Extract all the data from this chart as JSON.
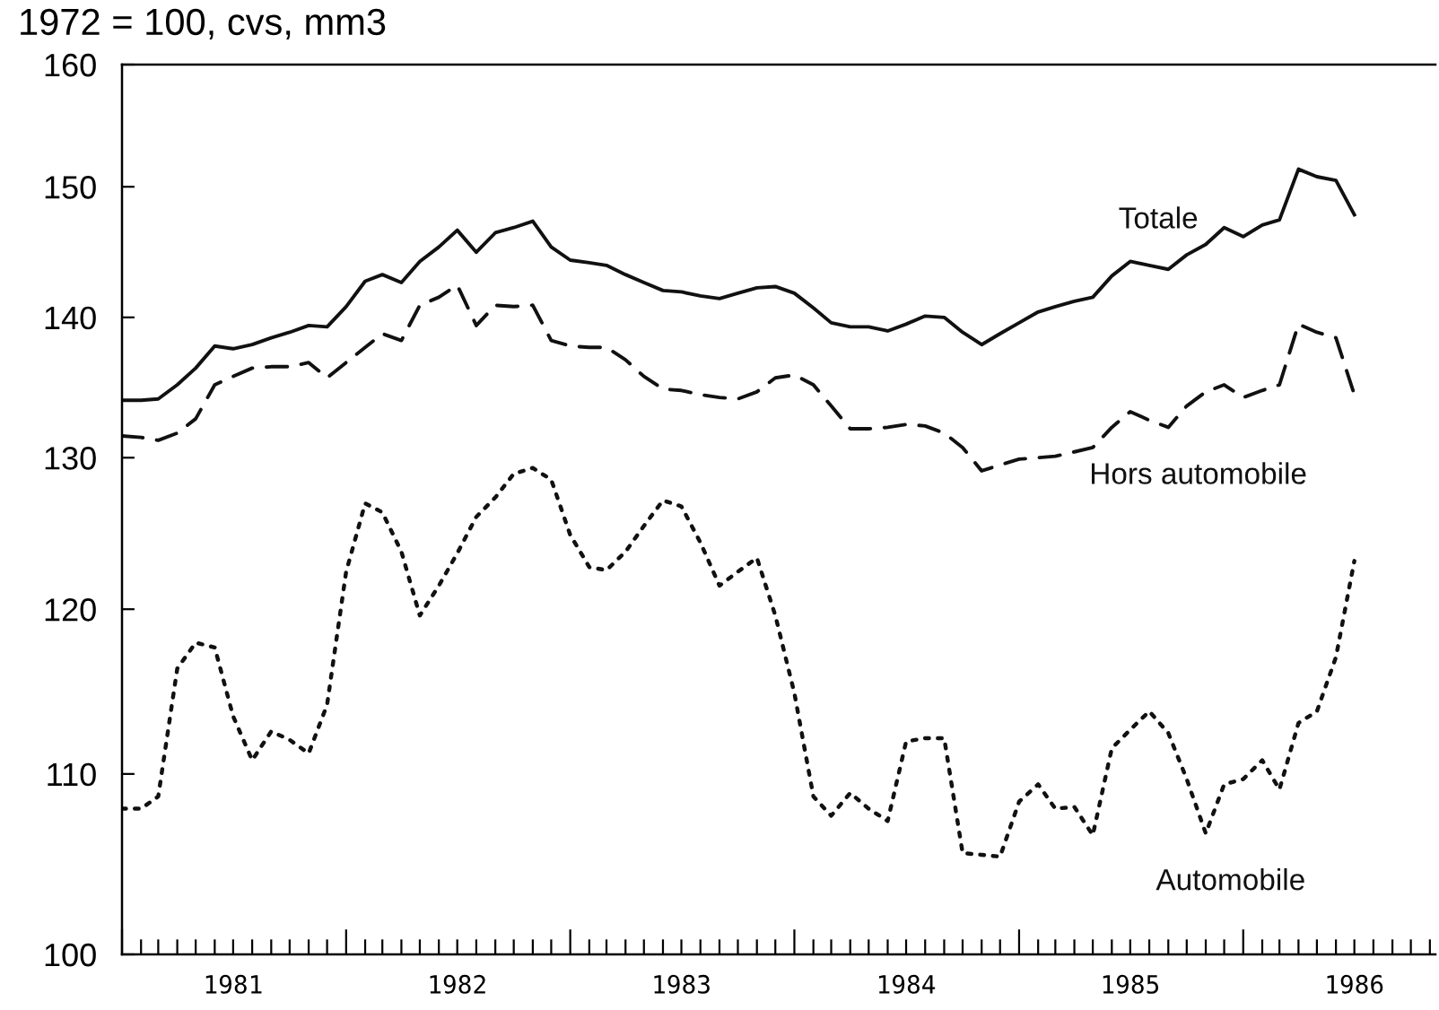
{
  "chart_data": {
    "type": "line",
    "title": "1972 = 100, cvs, mm3",
    "log": "y",
    "grid": false,
    "legend": false,
    "marker": "none",
    "x": [
      "1981-01",
      "1981-02",
      "1981-03",
      "1981-04",
      "1981-05",
      "1981-06",
      "1981-07",
      "1981-08",
      "1981-09",
      "1981-10",
      "1981-11",
      "1981-12",
      "1982-01",
      "1982-02",
      "1982-03",
      "1982-04",
      "1982-05",
      "1982-06",
      "1982-07",
      "1982-08",
      "1982-09",
      "1982-10",
      "1982-11",
      "1982-12",
      "1983-01",
      "1983-02",
      "1983-03",
      "1983-04",
      "1983-05",
      "1983-06",
      "1983-07",
      "1983-08",
      "1983-09",
      "1983-10",
      "1983-11",
      "1983-12",
      "1984-01",
      "1984-02",
      "1984-03",
      "1984-04",
      "1984-05",
      "1984-06",
      "1984-07",
      "1984-08",
      "1984-09",
      "1984-10",
      "1984-11",
      "1984-12",
      "1985-01",
      "1985-02",
      "1985-03",
      "1985-04",
      "1985-05",
      "1985-06",
      "1985-07",
      "1985-08",
      "1985-09",
      "1985-10",
      "1985-11",
      "1985-12",
      "1986-01",
      "1986-02",
      "1986-03",
      "1986-04",
      "1986-05",
      "1986-06",
      "1986-07"
    ],
    "series": [
      {
        "name": "Totale",
        "color": "#111111",
        "line_style": "solid",
        "values": [
          134.0,
          134.0,
          134.1,
          135.1,
          136.3,
          137.9,
          137.7,
          138.0,
          138.5,
          138.9,
          139.4,
          139.3,
          140.8,
          142.7,
          143.2,
          142.6,
          144.2,
          145.3,
          146.6,
          144.9,
          146.4,
          146.8,
          147.3,
          145.3,
          144.3,
          144.1,
          143.9,
          143.2,
          142.6,
          142.0,
          141.9,
          141.6,
          141.4,
          141.8,
          142.2,
          142.3,
          141.8,
          140.7,
          139.6,
          139.3,
          139.3,
          139.0,
          139.5,
          140.1,
          140.0,
          138.9,
          138.0,
          138.8,
          139.6,
          140.4,
          140.8,
          141.2,
          141.5,
          143.1,
          144.2,
          143.9,
          143.6,
          144.7,
          145.5,
          146.8,
          146.1,
          147.0,
          147.4,
          151.4,
          150.8,
          150.5,
          147.8
        ]
      },
      {
        "name": "Hors automobile",
        "color": "#111111",
        "line_style": "dashed",
        "values": [
          131.5,
          131.4,
          131.2,
          131.7,
          132.7,
          135.1,
          135.7,
          136.3,
          136.4,
          136.4,
          136.7,
          135.6,
          136.7,
          137.8,
          138.8,
          138.3,
          140.9,
          141.5,
          142.4,
          139.4,
          140.9,
          140.8,
          140.9,
          138.3,
          137.9,
          137.8,
          137.8,
          136.9,
          135.7,
          134.8,
          134.7,
          134.4,
          134.2,
          134.1,
          134.6,
          135.6,
          135.8,
          135.1,
          133.6,
          132.0,
          132.0,
          132.1,
          132.3,
          132.2,
          131.7,
          130.7,
          129.1,
          129.5,
          129.9,
          130.0,
          130.1,
          130.4,
          130.7,
          132.1,
          133.2,
          132.6,
          132.1,
          133.6,
          134.6,
          135.1,
          134.2,
          134.7,
          135.1,
          139.5,
          138.9,
          138.5,
          134.4
        ]
      },
      {
        "name": "Automobile",
        "color": "#111111",
        "line_style": "dotted",
        "values": [
          108.0,
          108.0,
          108.7,
          116.3,
          117.9,
          117.6,
          113.4,
          110.8,
          112.5,
          112.0,
          111.2,
          114.1,
          122.4,
          126.9,
          126.3,
          123.7,
          119.6,
          121.5,
          123.6,
          126.0,
          127.3,
          128.9,
          129.3,
          128.5,
          124.8,
          122.7,
          122.5,
          123.7,
          125.4,
          127.1,
          126.7,
          124.3,
          121.5,
          122.4,
          123.3,
          119.6,
          114.8,
          108.7,
          107.6,
          108.9,
          108.0,
          107.3,
          111.9,
          112.1,
          112.1,
          105.5,
          105.4,
          105.3,
          108.4,
          109.4,
          108.0,
          108.1,
          106.5,
          111.5,
          112.6,
          113.7,
          112.4,
          109.7,
          106.6,
          109.4,
          109.7,
          110.8,
          109.1,
          113.0,
          113.7,
          117.0,
          123.1
        ]
      }
    ],
    "ylim": [
      100,
      160
    ],
    "yticks": [
      100,
      110,
      120,
      130,
      140,
      150,
      160
    ],
    "xlim": [
      "1981-01",
      "1986-11-10"
    ],
    "xticks": [
      {
        "value": "1981-01",
        "label": null
      },
      {
        "value": "1981-02",
        "label": null
      },
      {
        "value": "1981-03",
        "label": null
      },
      {
        "value": "1981-04",
        "label": null
      },
      {
        "value": "1981-05",
        "label": null
      },
      {
        "value": "1981-06",
        "label": null
      },
      {
        "value": "1981-07",
        "label": "1981"
      },
      {
        "value": "1981-08",
        "label": null
      },
      {
        "value": "1981-09",
        "label": null
      },
      {
        "value": "1981-10",
        "label": null
      },
      {
        "value": "1981-11",
        "label": null
      },
      {
        "value": "1981-12",
        "label": null
      },
      {
        "value": "1982-01",
        "label": null
      },
      {
        "value": "1982-02",
        "label": null
      },
      {
        "value": "1982-03",
        "label": null
      },
      {
        "value": "1982-04",
        "label": null
      },
      {
        "value": "1982-05",
        "label": null
      },
      {
        "value": "1982-06",
        "label": null
      },
      {
        "value": "1982-07",
        "label": "1982"
      },
      {
        "value": "1982-08",
        "label": null
      },
      {
        "value": "1982-09",
        "label": null
      },
      {
        "value": "1982-10",
        "label": null
      },
      {
        "value": "1982-11",
        "label": null
      },
      {
        "value": "1982-12",
        "label": null
      },
      {
        "value": "1983-01",
        "label": null
      },
      {
        "value": "1983-02",
        "label": null
      },
      {
        "value": "1983-03",
        "label": null
      },
      {
        "value": "1983-04",
        "label": null
      },
      {
        "value": "1983-05",
        "label": null
      },
      {
        "value": "1983-06",
        "label": null
      },
      {
        "value": "1983-07",
        "label": "1983"
      },
      {
        "value": "1983-08",
        "label": null
      },
      {
        "value": "1983-09",
        "label": null
      },
      {
        "value": "1983-10",
        "label": null
      },
      {
        "value": "1983-11",
        "label": null
      },
      {
        "value": "1983-12",
        "label": null
      },
      {
        "value": "1984-01",
        "label": null
      },
      {
        "value": "1984-02",
        "label": null
      },
      {
        "value": "1984-03",
        "label": null
      },
      {
        "value": "1984-04",
        "label": null
      },
      {
        "value": "1984-05",
        "label": null
      },
      {
        "value": "1984-06",
        "label": null
      },
      {
        "value": "1984-07",
        "label": "1984"
      },
      {
        "value": "1984-08",
        "label": null
      },
      {
        "value": "1984-09",
        "label": null
      },
      {
        "value": "1984-10",
        "label": null
      },
      {
        "value": "1984-11",
        "label": null
      },
      {
        "value": "1984-12",
        "label": null
      },
      {
        "value": "1985-01",
        "label": null
      },
      {
        "value": "1985-02",
        "label": null
      },
      {
        "value": "1985-03",
        "label": null
      },
      {
        "value": "1985-04",
        "label": null
      },
      {
        "value": "1985-05",
        "label": null
      },
      {
        "value": "1985-06",
        "label": null
      },
      {
        "value": "1985-07",
        "label": "1985"
      },
      {
        "value": "1985-08",
        "label": null
      },
      {
        "value": "1985-09",
        "label": null
      },
      {
        "value": "1985-10",
        "label": null
      },
      {
        "value": "1985-11",
        "label": null
      },
      {
        "value": "1985-12",
        "label": null
      },
      {
        "value": "1986-01",
        "label": null
      },
      {
        "value": "1986-02",
        "label": null
      },
      {
        "value": "1986-03",
        "label": null
      },
      {
        "value": "1986-04",
        "label": null
      },
      {
        "value": "1986-05",
        "label": null
      },
      {
        "value": "1986-06",
        "label": null
      },
      {
        "value": "1986-07",
        "label": "1986"
      },
      {
        "value": "1986-08",
        "label": null
      },
      {
        "value": "1986-09",
        "label": null
      },
      {
        "value": "1986-10",
        "label": null
      },
      {
        "value": "1986-11",
        "label": null
      }
    ]
  }
}
